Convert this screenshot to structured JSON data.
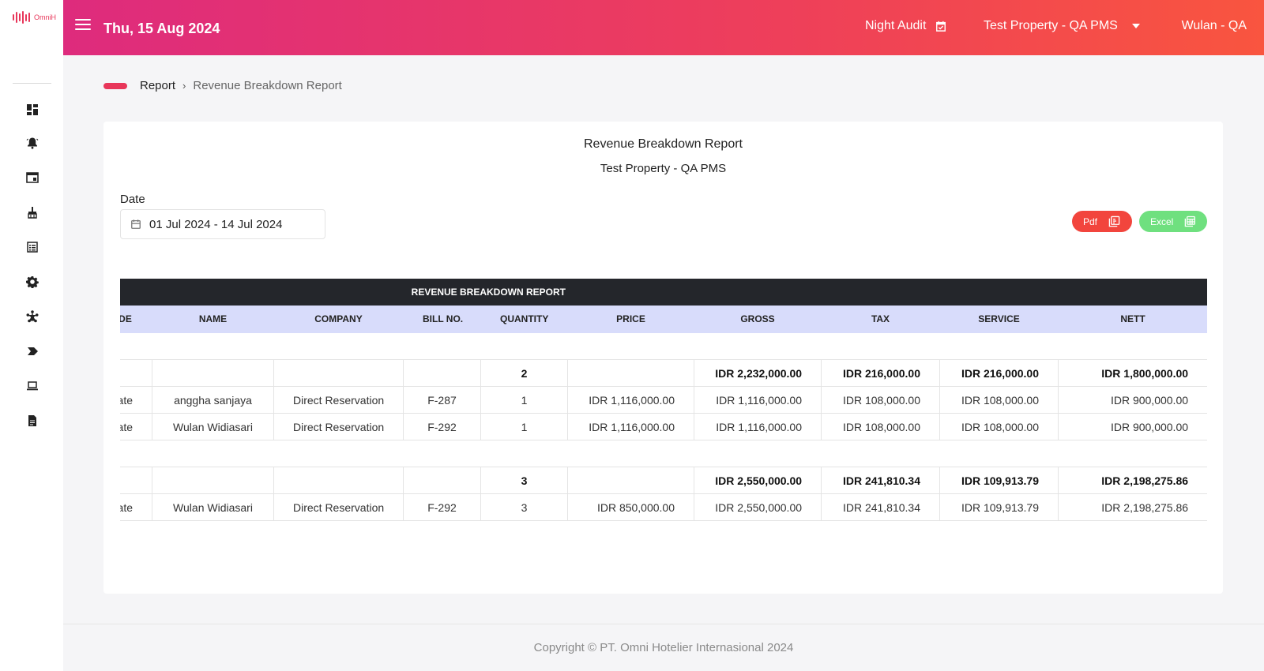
{
  "app": {
    "logo_text": "OmniH",
    "brand_color": "#e8365a"
  },
  "sidebar": {
    "items": [
      {
        "icon": "dashboard-icon"
      },
      {
        "icon": "bell-alert-icon"
      },
      {
        "icon": "window-icon"
      },
      {
        "icon": "housekeeping-icon"
      },
      {
        "icon": "list-icon"
      },
      {
        "icon": "gear-icon"
      },
      {
        "icon": "network-icon"
      },
      {
        "icon": "arrow-label-icon"
      },
      {
        "icon": "laptop-icon"
      },
      {
        "icon": "document-icon"
      }
    ]
  },
  "header": {
    "date": "Thu, 15 Aug 2024",
    "night_audit": "Night Audit",
    "property": "Test Property - QA PMS",
    "user": "Wulan - QA"
  },
  "breadcrumb": {
    "parent": "Report",
    "current": "Revenue Breakdown Report"
  },
  "report": {
    "title": "Revenue Breakdown Report",
    "subtitle": "Test Property - QA PMS",
    "date_label": "Date",
    "date_range": "01 Jul 2024 - 14 Jul 2024",
    "pdf_label": "Pdf",
    "excel_label": "Excel"
  },
  "table": {
    "title": "REVENUE BREAKDOWN REPORT",
    "columns": [
      "CODE",
      "NAME",
      "COMPANY",
      "BILL NO.",
      "QUANTITY",
      "PRICE",
      "GROSS",
      "TAX",
      "SERVICE",
      "NETT"
    ],
    "groups": [
      {
        "subtotal": {
          "quantity": "2",
          "gross": "IDR 2,232,000.00",
          "tax": "IDR 216,000.00",
          "service": "IDR 216,000.00",
          "nett": "IDR 1,800,000.00"
        },
        "rows": [
          {
            "code": "Rate",
            "name": "anggha sanjaya",
            "company": "Direct Reservation",
            "bill": "F-287",
            "quantity": "1",
            "price": "IDR 1,116,000.00",
            "gross": "IDR 1,116,000.00",
            "tax": "IDR 108,000.00",
            "service": "IDR 108,000.00",
            "nett": "IDR 900,000.00"
          },
          {
            "code": "Rate",
            "name": "Wulan Widiasari",
            "company": "Direct Reservation",
            "bill": "F-292",
            "quantity": "1",
            "price": "IDR 1,116,000.00",
            "gross": "IDR 1,116,000.00",
            "tax": "IDR 108,000.00",
            "service": "IDR 108,000.00",
            "nett": "IDR 900,000.00"
          }
        ]
      },
      {
        "subtotal": {
          "quantity": "3",
          "gross": "IDR 2,550,000.00",
          "tax": "IDR 241,810.34",
          "service": "IDR 109,913.79",
          "nett": "IDR 2,198,275.86"
        },
        "rows": [
          {
            "code": "Rate",
            "name": "Wulan Widiasari",
            "company": "Direct Reservation",
            "bill": "F-292",
            "quantity": "3",
            "price": "IDR 850,000.00",
            "gross": "IDR 2,550,000.00",
            "tax": "IDR 241,810.34",
            "service": "IDR 109,913.79",
            "nett": "IDR 2,198,275.86"
          }
        ]
      }
    ]
  },
  "footer": {
    "copyright": "Copyright © PT. Omni Hotelier Internasional 2024"
  }
}
